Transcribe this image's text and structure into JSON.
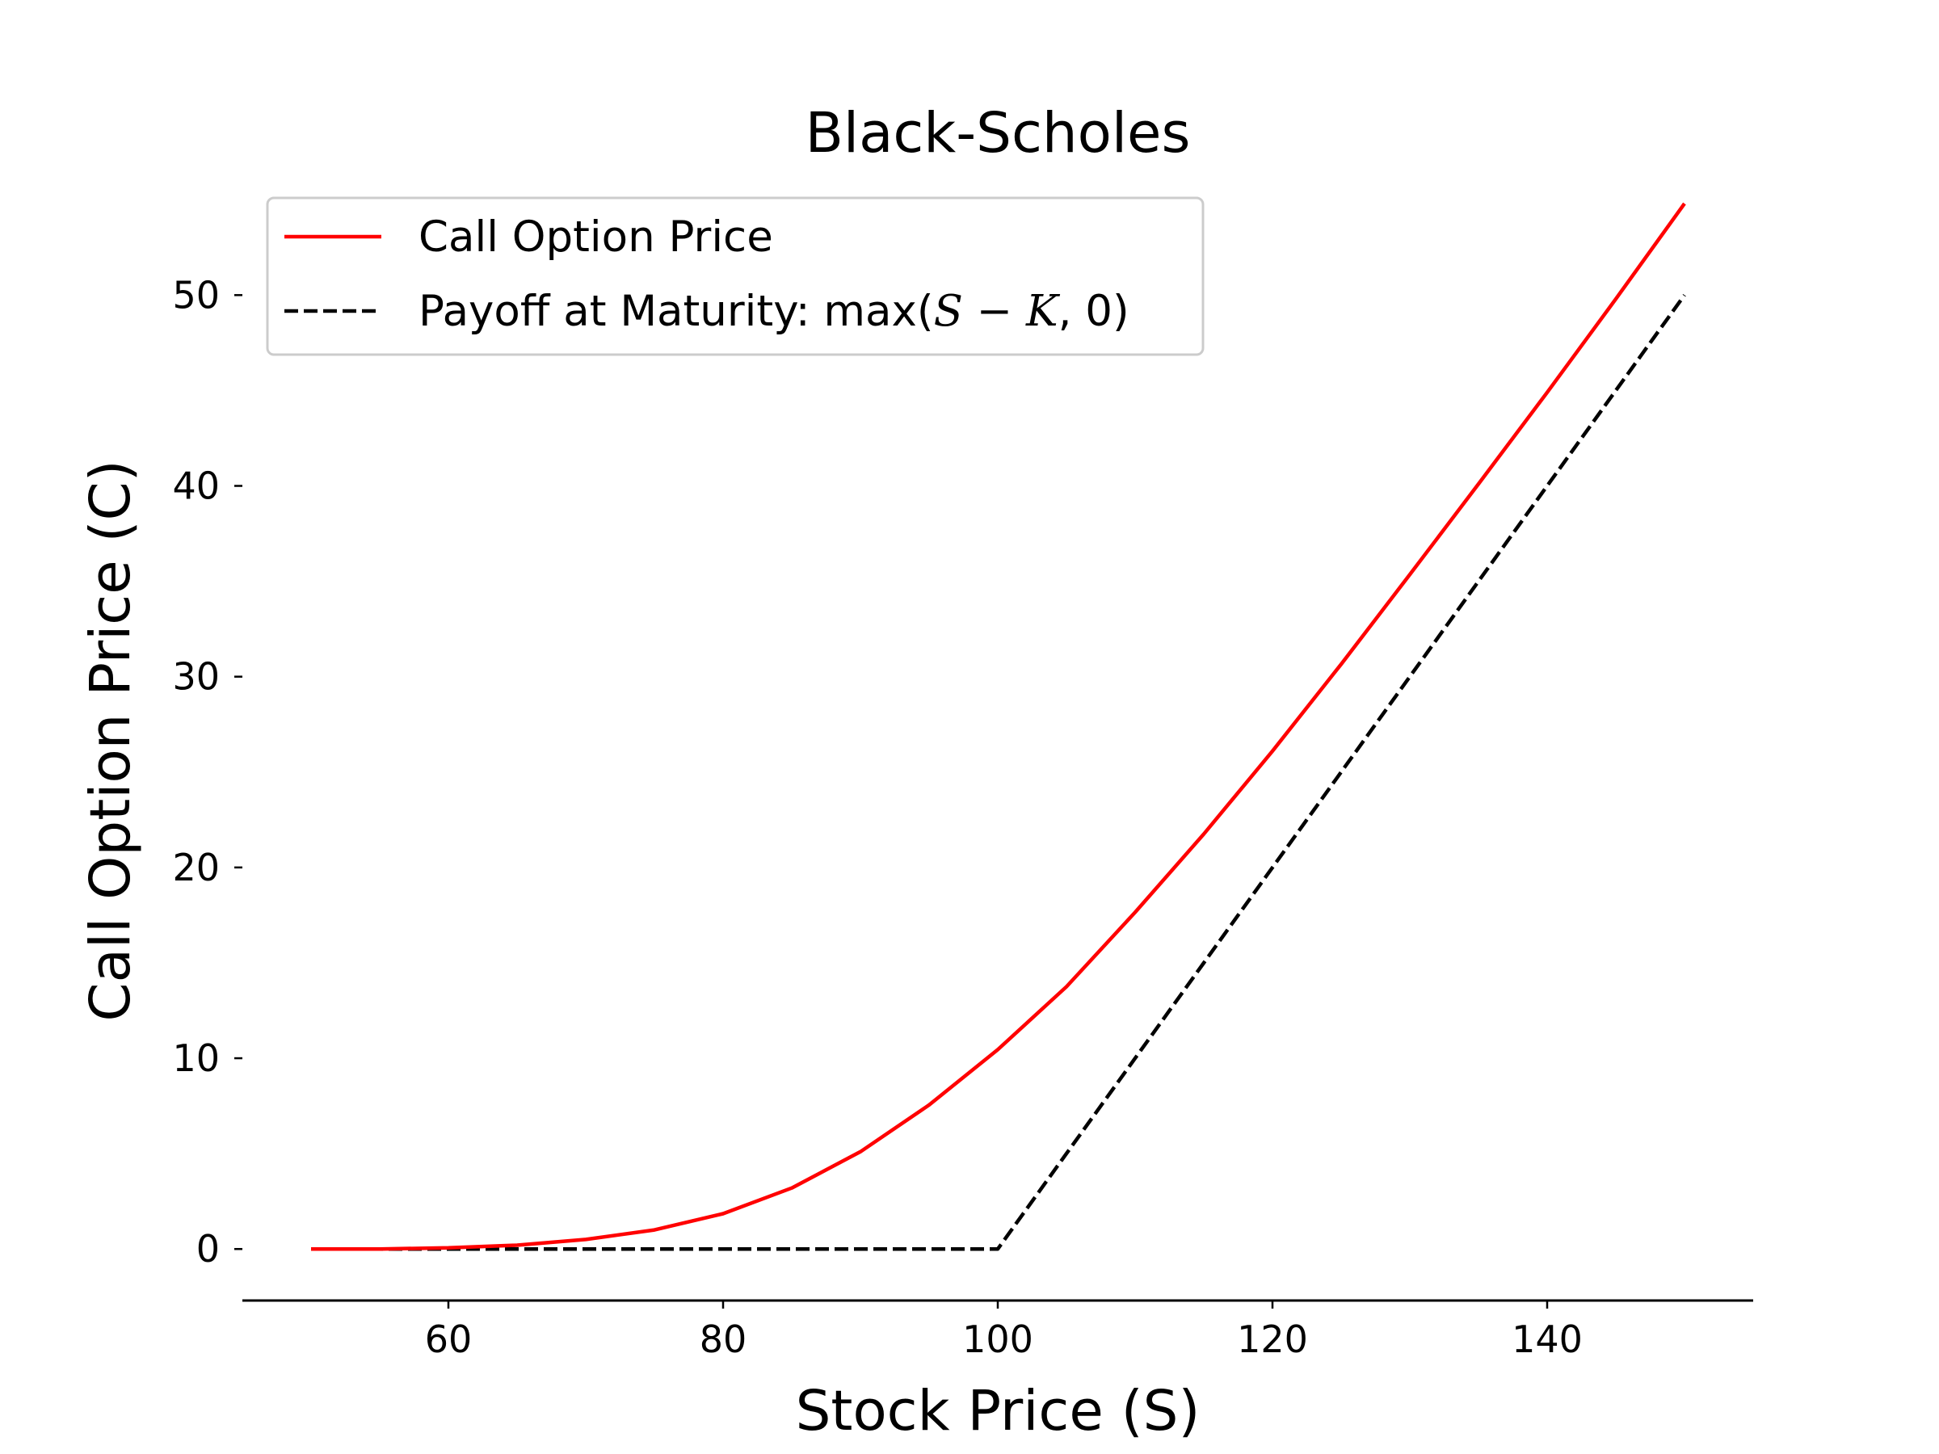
{
  "chart_data": {
    "type": "line",
    "title": "Black-Scholes",
    "xlabel": "Stock Price (S)",
    "ylabel": "Call Option Price (C)",
    "xlim": [
      45,
      155
    ],
    "ylim": [
      -2.7,
      57
    ],
    "xticks": [
      60,
      80,
      100,
      120,
      140
    ],
    "yticks": [
      0,
      10,
      20,
      30,
      40,
      50
    ],
    "grid": false,
    "legend_position": "upper-left",
    "x": [
      50,
      55,
      60,
      65,
      70,
      75,
      80,
      85,
      90,
      95,
      100,
      105,
      110,
      115,
      120,
      125,
      130,
      135,
      140,
      145,
      150
    ],
    "series": [
      {
        "name": "Call Option Price",
        "color": "#ff0000",
        "style": "solid",
        "values": [
          0.0,
          0.0,
          0.06,
          0.2,
          0.5,
          1.0,
          1.85,
          3.2,
          5.1,
          7.55,
          10.45,
          13.75,
          17.65,
          21.75,
          26.1,
          30.65,
          35.35,
          40.1,
          44.9,
          49.8,
          54.8
        ]
      },
      {
        "name": "Payoff at Maturity: max(S − K, 0)",
        "color": "#000000",
        "style": "dashed",
        "values": [
          0,
          0,
          0,
          0,
          0,
          0,
          0,
          0,
          0,
          0,
          0,
          5,
          10,
          15,
          20,
          25,
          30,
          35,
          40,
          45,
          50
        ]
      }
    ],
    "legend": {
      "call_label": "Call Option Price",
      "payoff_prefix": "Payoff at Maturity: max(",
      "payoff_math": "S − K",
      "payoff_suffix": ", 0)"
    }
  }
}
